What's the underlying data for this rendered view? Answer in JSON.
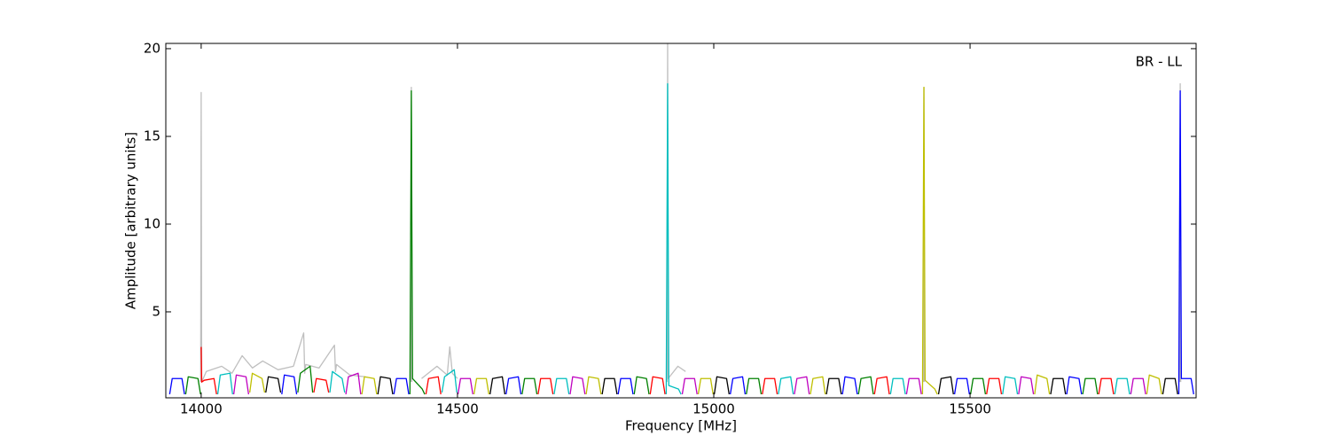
{
  "chart_data": {
    "type": "line",
    "annotation": "BR - LL",
    "xlabel": "Frequency [MHz]",
    "ylabel": "Amplitude [arbitrary units]",
    "xlim": [
      13931,
      15941
    ],
    "ylim": [
      0.1,
      20.3
    ],
    "xticks": [
      14000,
      14500,
      15000,
      15500
    ],
    "yticks": [
      5,
      10,
      15,
      20
    ],
    "series": [
      {
        "color": "#bfbfbf",
        "x": [
          13999,
          14000,
          14001,
          14010,
          14040,
          14060,
          14080,
          14100,
          14120,
          14150,
          14180,
          14200,
          14202,
          14204,
          14230,
          14260,
          14262,
          14264,
          14290,
          14320,
          null,
          14409,
          14410,
          14411,
          null,
          14430,
          14460,
          14480,
          14485,
          14490,
          14500,
          null,
          14909,
          14910,
          14911,
          14930,
          14945,
          null,
          15409,
          15410,
          15411,
          null,
          15909,
          15910,
          15911
        ],
        "values": [
          1.0,
          17.5,
          1.0,
          1.6,
          1.9,
          1.5,
          2.5,
          1.8,
          2.2,
          1.7,
          1.9,
          3.8,
          1.5,
          2.0,
          1.8,
          3.1,
          1.6,
          2.0,
          1.4,
          1.3,
          null,
          1.0,
          17.8,
          1.0,
          null,
          1.2,
          1.9,
          1.4,
          3.0,
          1.5,
          1.2,
          null,
          1.0,
          20.3,
          1.2,
          1.9,
          1.6,
          null,
          1.0,
          17.8,
          1.0,
          null,
          1.0,
          18.0,
          1.0
        ]
      },
      {
        "color": "#0000ff",
        "x": [
          13938.5,
          13943.5,
          13962.5,
          13967.5,
          null,
          14157.25,
          14162.25,
          14181.25,
          14186.25,
          null,
          14376,
          14381,
          14400,
          14405,
          null,
          14594.75,
          14599.75,
          14618.75,
          14623.75,
          null,
          14813.5,
          14818.5,
          14837.5,
          14842.5,
          null,
          15032.25,
          15037.25,
          15056.25,
          15061.25,
          null,
          15251,
          15256,
          15275,
          15280,
          null,
          15469.75,
          15474.75,
          15493.75,
          15498.75,
          null,
          15688.5,
          15693.5,
          15712.5,
          15717.5,
          null,
          15907.25,
          15910,
          15912.25,
          15931.25,
          15936.25
        ],
        "values": [
          0.3,
          1.2,
          1.2,
          0.3,
          null,
          0.3,
          1.4,
          1.3,
          0.3,
          null,
          0.3,
          1.2,
          1.2,
          0.3,
          null,
          0.3,
          1.2,
          1.3,
          0.3,
          null,
          0.3,
          1.2,
          1.2,
          0.3,
          null,
          0.3,
          1.2,
          1.3,
          0.3,
          null,
          0.3,
          1.3,
          1.2,
          0.3,
          null,
          0.3,
          1.2,
          1.2,
          0.3,
          null,
          0.3,
          1.3,
          1.2,
          0.3,
          null,
          0.3,
          17.6,
          1.2,
          1.2,
          0.3
        ]
      },
      {
        "color": "#008000",
        "x": [
          13969.75,
          13974.75,
          13993.75,
          13998.75,
          null,
          14188.5,
          14193.5,
          14212.5,
          14217.5,
          null,
          14407.25,
          14410,
          14412.25,
          14431.25,
          14436.25,
          null,
          14626,
          14631,
          14650,
          14655,
          null,
          14844.75,
          14849.75,
          14868.75,
          14873.75,
          null,
          15063.5,
          15068.5,
          15087.5,
          15092.5,
          null,
          15282.25,
          15287.25,
          15306.25,
          15311.25,
          null,
          15501,
          15506,
          15525,
          15530,
          null,
          15719.75,
          15724.75,
          15743.75,
          15748.75
        ],
        "values": [
          0.3,
          1.3,
          1.2,
          0.3,
          null,
          0.4,
          1.5,
          1.9,
          0.4,
          null,
          0.3,
          17.6,
          1.2,
          0.6,
          0.3,
          null,
          0.3,
          1.2,
          1.2,
          0.3,
          null,
          0.3,
          1.3,
          1.2,
          0.3,
          null,
          0.3,
          1.2,
          1.2,
          0.3,
          null,
          0.3,
          1.2,
          1.3,
          0.3,
          null,
          0.3,
          1.2,
          1.2,
          0.3,
          null,
          0.3,
          1.2,
          1.2,
          0.3
        ]
      },
      {
        "color": "#ff0000",
        "x": [
          14000,
          14001,
          14006,
          14025,
          14030,
          null,
          14219.75,
          14224.75,
          14243.75,
          14248.75,
          null,
          14438.5,
          14443.5,
          14462.5,
          14467.5,
          null,
          14657.25,
          14662.25,
          14681.25,
          14686.25,
          null,
          14876,
          14881,
          14900,
          14905,
          null,
          15094.75,
          15099.75,
          15118.75,
          15123.75,
          null,
          15313.5,
          15318.5,
          15337.5,
          15342.5,
          null,
          15532.25,
          15537.25,
          15556.25,
          15561.25,
          null,
          15751,
          15756,
          15775,
          15780
        ],
        "values": [
          3.0,
          1.0,
          1.1,
          1.2,
          0.3,
          null,
          0.4,
          1.2,
          1.1,
          0.4,
          null,
          0.3,
          1.2,
          1.3,
          0.3,
          null,
          0.3,
          1.2,
          1.2,
          0.3,
          null,
          0.3,
          1.3,
          1.2,
          0.3,
          null,
          0.3,
          1.2,
          1.2,
          0.3,
          null,
          0.3,
          1.2,
          1.3,
          0.3,
          null,
          0.3,
          1.2,
          1.2,
          0.3,
          null,
          0.3,
          1.2,
          1.2,
          0.3
        ]
      },
      {
        "color": "#00bfbf",
        "x": [
          14032.25,
          14037.25,
          14056.25,
          14061.25,
          null,
          14251,
          14256,
          14275,
          14280,
          null,
          14469.75,
          14474.75,
          14493.75,
          14498.75,
          null,
          14688.5,
          14693.5,
          14712.5,
          14717.5,
          null,
          14907.25,
          14910,
          14912.25,
          14931.25,
          14936.25,
          null,
          15126,
          15131,
          15150,
          15155,
          null,
          15344.75,
          15349.75,
          15368.75,
          15373.75,
          null,
          15563.5,
          15568.5,
          15587.5,
          15592.5,
          null,
          15782.25,
          15787.25,
          15806.25,
          15811.25
        ],
        "values": [
          0.3,
          1.4,
          1.5,
          0.3,
          null,
          0.4,
          1.6,
          1.2,
          0.4,
          null,
          0.4,
          1.3,
          1.7,
          0.4,
          null,
          0.3,
          1.2,
          1.2,
          0.3,
          null,
          0.3,
          18.0,
          0.8,
          0.6,
          0.3,
          null,
          0.3,
          1.2,
          1.3,
          0.3,
          null,
          0.3,
          1.2,
          1.2,
          0.3,
          null,
          0.3,
          1.3,
          1.2,
          0.3,
          null,
          0.3,
          1.2,
          1.2,
          0.3
        ]
      },
      {
        "color": "#bf00bf",
        "x": [
          14063.5,
          14068.5,
          14087.5,
          14092.5,
          null,
          14282.25,
          14287.25,
          14306.25,
          14311.25,
          null,
          14501,
          14506,
          14525,
          14530,
          null,
          14719.75,
          14724.75,
          14743.75,
          14748.75,
          null,
          14938.5,
          14943.5,
          14962.5,
          14967.5,
          null,
          15157.25,
          15162.25,
          15181.25,
          15186.25,
          null,
          15376,
          15381,
          15400,
          15405,
          null,
          15594.75,
          15599.75,
          15618.75,
          15623.75,
          null,
          15813.5,
          15818.5,
          15837.5,
          15842.5
        ],
        "values": [
          0.3,
          1.4,
          1.3,
          0.3,
          null,
          0.3,
          1.3,
          1.5,
          0.3,
          null,
          0.3,
          1.2,
          1.2,
          0.3,
          null,
          0.3,
          1.3,
          1.2,
          0.3,
          null,
          0.3,
          1.2,
          1.2,
          0.3,
          null,
          0.3,
          1.2,
          1.3,
          0.3,
          null,
          0.3,
          1.2,
          1.2,
          0.3,
          null,
          0.3,
          1.3,
          1.2,
          0.3,
          null,
          0.3,
          1.2,
          1.2,
          0.3
        ]
      },
      {
        "color": "#bfbf00",
        "x": [
          14094.75,
          14099.75,
          14118.75,
          14123.75,
          null,
          14313.5,
          14318.5,
          14337.5,
          14342.5,
          null,
          14532.25,
          14537.25,
          14556.25,
          14561.25,
          null,
          14751,
          14756,
          14775,
          14780,
          null,
          14969.75,
          14974.75,
          14993.75,
          14998.75,
          null,
          15188.5,
          15193.5,
          15212.5,
          15217.5,
          null,
          15407.25,
          15410,
          15412.25,
          15431.25,
          15436.25,
          null,
          15626,
          15631,
          15650,
          15655,
          null,
          15844.75,
          15849.75,
          15868.75,
          15873.75
        ],
        "values": [
          0.4,
          1.5,
          1.2,
          0.4,
          null,
          0.3,
          1.3,
          1.2,
          0.3,
          null,
          0.3,
          1.2,
          1.2,
          0.3,
          null,
          0.3,
          1.3,
          1.2,
          0.3,
          null,
          0.3,
          1.2,
          1.2,
          0.3,
          null,
          0.3,
          1.2,
          1.3,
          0.3,
          null,
          0.3,
          17.8,
          1.1,
          0.6,
          0.3,
          null,
          0.3,
          1.4,
          1.2,
          0.3,
          null,
          0.3,
          1.4,
          1.2,
          0.3
        ]
      },
      {
        "color": "#000000",
        "x": [
          14126,
          14131,
          14150,
          14155,
          null,
          14344.75,
          14349.75,
          14368.75,
          14373.75,
          null,
          14563.5,
          14568.5,
          14587.5,
          14592.5,
          null,
          14782.25,
          14787.25,
          14806.25,
          14811.25,
          null,
          15001,
          15006,
          15025,
          15030,
          null,
          15219.75,
          15224.75,
          15243.75,
          15248.75,
          null,
          15438.5,
          15443.5,
          15462.5,
          15467.5,
          null,
          15657.25,
          15662.25,
          15681.25,
          15686.25,
          null,
          15876,
          15881,
          15900,
          15905
        ],
        "values": [
          0.4,
          1.3,
          1.2,
          0.4,
          null,
          0.3,
          1.3,
          1.2,
          0.3,
          null,
          0.3,
          1.2,
          1.3,
          0.3,
          null,
          0.3,
          1.2,
          1.2,
          0.3,
          null,
          0.3,
          1.3,
          1.2,
          0.3,
          null,
          0.3,
          1.2,
          1.2,
          0.3,
          null,
          0.3,
          1.2,
          1.3,
          0.3,
          null,
          0.3,
          1.2,
          1.2,
          0.3,
          null,
          0.3,
          1.2,
          1.2,
          0.3
        ]
      }
    ]
  }
}
